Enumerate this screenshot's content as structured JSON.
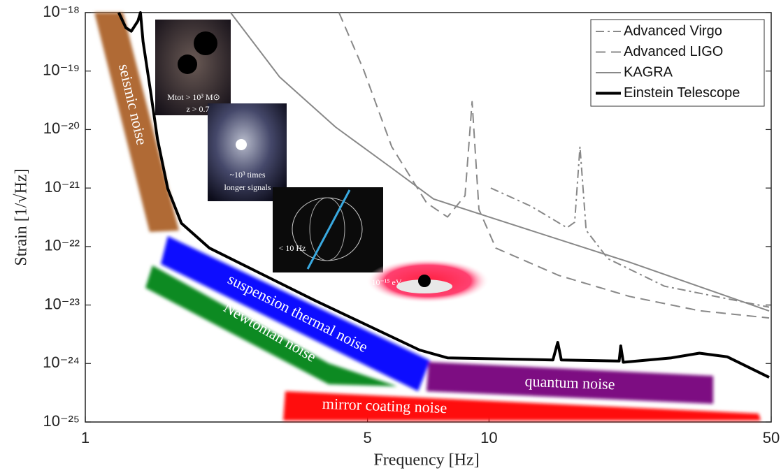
{
  "chart_data": {
    "type": "line",
    "xlabel": "Frequency [Hz]",
    "ylabel": "Strain [1/√Hz]",
    "xscale": "log",
    "yscale": "log",
    "xlim": [
      1,
      50
    ],
    "ylim": [
      1e-25,
      1e-18
    ],
    "xticks": [
      1,
      5,
      10,
      50
    ],
    "yticks": [
      {
        "value": 1e-18,
        "label": "10⁻¹⁸"
      },
      {
        "value": 1e-19,
        "label": "10⁻¹⁹"
      },
      {
        "value": 1e-20,
        "label": "10⁻²⁰"
      },
      {
        "value": 1e-21,
        "label": "10⁻²¹"
      },
      {
        "value": 1e-22,
        "label": "10⁻²²"
      },
      {
        "value": 1e-23,
        "label": "10⁻²³"
      },
      {
        "value": 1e-24,
        "label": "10⁻²⁴"
      },
      {
        "value": 1e-25,
        "label": "10⁻²⁵"
      }
    ],
    "legend": "upper right",
    "series": [
      {
        "name": "Advanced Virgo",
        "color": "#888888",
        "linestyle": "dashdot",
        "linewidth": 2,
        "x": [
          10.1,
          12.7,
          15.6,
          16.3,
          16.8,
          17.4,
          19.7,
          27.2,
          49.4
        ],
        "values": [
          1e-21,
          4.9e-22,
          2.1e-22,
          2.6e-22,
          5.1e-21,
          1.9e-22,
          6.2e-23,
          2.1e-23,
          9.2e-24
        ]
      },
      {
        "name": "Advanced LIGO",
        "color": "#888888",
        "linestyle": "dashed",
        "linewidth": 2,
        "x": [
          4.25,
          4.89,
          5.74,
          7.0,
          7.89,
          8.72,
          9.08,
          9.44,
          10.4,
          14.9,
          22.3,
          33.2,
          49.4
        ],
        "values": [
          1e-18,
          1.05e-19,
          5.1e-21,
          5.6e-22,
          3.2e-22,
          7.4e-22,
          3e-20,
          4.3e-22,
          9.4e-23,
          3.2e-23,
          1.4e-23,
          8e-24,
          6e-24
        ]
      },
      {
        "name": "KAGRA",
        "color": "#888888",
        "linestyle": "solid",
        "linewidth": 2,
        "x": [
          2.29,
          3.03,
          4.17,
          5.74,
          7.29,
          10.0,
          22.3,
          49.4
        ],
        "values": [
          1e-18,
          7.9e-20,
          1.1e-20,
          2.2e-21,
          6.5e-22,
          3.2e-22,
          5.4e-23,
          7.9e-24
        ]
      },
      {
        "name": "Einstein Telescope",
        "color": "#000000",
        "linestyle": "solid",
        "linewidth": 4,
        "x": [
          1.21,
          1.26,
          1.3,
          1.35,
          1.37,
          1.39,
          1.45,
          1.51,
          1.6,
          1.73,
          2.03,
          3.7,
          6.73,
          7.89,
          14.4,
          14.8,
          15.1,
          21.0,
          21.2,
          21.5,
          28.3,
          33.2,
          38.9,
          49.4
        ],
        "values": [
          1e-18,
          5.5e-19,
          4.8e-19,
          7.2e-19,
          1e-18,
          3.2e-19,
          4.6e-20,
          6.8e-21,
          9.8e-22,
          2.5e-22,
          9.4e-23,
          1.2e-23,
          1.7e-24,
          1.25e-24,
          1.15e-24,
          2.3e-24,
          1.15e-24,
          1.1e-24,
          2e-24,
          1.05e-24,
          1.25e-24,
          1.5e-24,
          1.3e-24,
          5.8e-25
        ]
      }
    ],
    "noise_labels": [
      "seismic noise",
      "suspension thermal noise",
      "Newtonian noise",
      "quantum noise",
      "mirror coating noise"
    ],
    "inset_labels": [
      "Mtot > 10³ M⊙",
      "z > 0.7",
      "~10³ times",
      "longer signals",
      "< 10 Hz",
      "10⁻¹⁵ eV"
    ]
  }
}
